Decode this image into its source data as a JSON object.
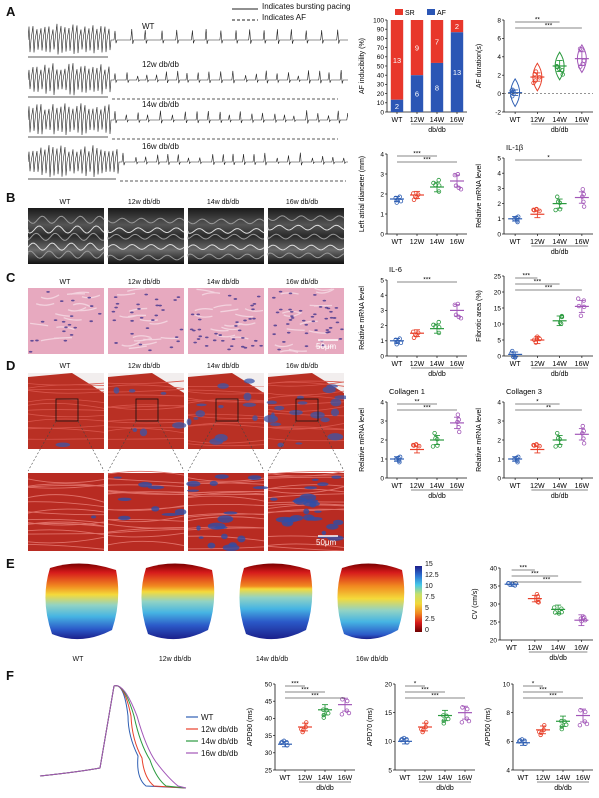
{
  "panels": {
    "a": "A",
    "b": "B",
    "c": "C",
    "d": "D",
    "e": "E",
    "f": "F"
  },
  "panel_a": {
    "legend_solid": "Indicates bursting pacing",
    "legend_dashed": "Indicates AF",
    "ecg_labels": [
      "WT",
      "12w db/db",
      "14w db/db",
      "16w db/db"
    ]
  },
  "groups_long": [
    "WT",
    "12w db/db",
    "14w db/db",
    "16w db/db"
  ],
  "scale_bar": "50μm",
  "colormap": {
    "ticks": [
      "15",
      "12.5",
      "10",
      "7.5",
      "5",
      "2.5",
      "0"
    ]
  },
  "apd_legend": [
    "WT",
    "12w db/db",
    "14w db/db",
    "16w db/db"
  ],
  "series_colors": {
    "WT": "#2f5fb3",
    "12W": "#e8402a",
    "14W": "#2a9a3e",
    "16W": "#a257b8"
  },
  "chart_data": [
    {
      "id": "af_inducibility",
      "type": "bar",
      "ylabel": "AF inducibility (%)",
      "ylim": [
        0,
        100
      ],
      "yticks": [
        0,
        10,
        20,
        30,
        40,
        50,
        60,
        70,
        80,
        90,
        100
      ],
      "categories": [
        "WT",
        "12W",
        "14W",
        "16W"
      ],
      "group_label": "db/db",
      "series": [
        {
          "name": "SR",
          "values": [
            13,
            9,
            7,
            2
          ]
        },
        {
          "name": "AF",
          "values": [
            2,
            6,
            8,
            13
          ]
        }
      ],
      "legend": [
        "SR",
        "AF"
      ],
      "colors": {
        "SR": "#e8372b",
        "AF": "#2b56b5"
      }
    },
    {
      "id": "af_duration",
      "type": "violin",
      "ylabel": "AF duration(s)",
      "ylim": [
        -2,
        8
      ],
      "yticks": [
        -2,
        0,
        2,
        4,
        6,
        8
      ],
      "categories": [
        "WT",
        "12W",
        "14W",
        "16W"
      ],
      "group_label": "db/db",
      "means": [
        0.1,
        1.8,
        3.0,
        3.8
      ],
      "sig": [
        {
          "from": 0,
          "to": 2,
          "text": "**"
        },
        {
          "from": 0,
          "to": 3,
          "text": "***"
        }
      ]
    },
    {
      "id": "lad",
      "type": "scatter",
      "ylabel": "Left atrial diameter (mm)",
      "ylim": [
        0,
        4
      ],
      "yticks": [
        0,
        1,
        2,
        3,
        4
      ],
      "categories": [
        "WT",
        "12W",
        "14W",
        "16W"
      ],
      "means": [
        1.75,
        1.95,
        2.35,
        2.65
      ],
      "sig": [
        {
          "from": 0,
          "to": 2,
          "text": "***"
        },
        {
          "from": 0,
          "to": 3,
          "text": "***"
        }
      ]
    },
    {
      "id": "il1b",
      "type": "scatter",
      "title": "IL-1β",
      "ylabel": "Relative mRNA level",
      "ylim": [
        0,
        5
      ],
      "yticks": [
        0,
        1,
        2,
        3,
        4,
        5
      ],
      "categories": [
        "WT",
        "12W",
        "14W",
        "16W"
      ],
      "group_label": "db/db",
      "means": [
        1.0,
        1.3,
        2.0,
        2.4
      ],
      "sig": [
        {
          "from": 0,
          "to": 3,
          "text": "*"
        }
      ]
    },
    {
      "id": "il6",
      "type": "scatter",
      "title": "IL-6",
      "ylabel": "Relative mRNA level",
      "ylim": [
        0,
        5
      ],
      "yticks": [
        0,
        1,
        2,
        3,
        4,
        5
      ],
      "categories": [
        "WT",
        "12W",
        "14W",
        "16W"
      ],
      "group_label": "db/db",
      "means": [
        1.0,
        1.5,
        1.8,
        3.0
      ],
      "sig": [
        {
          "from": 0,
          "to": 3,
          "text": "***"
        }
      ]
    },
    {
      "id": "fibrotic",
      "type": "scatter",
      "ylabel": "Fibrotic area (%)",
      "ylim": [
        0,
        25
      ],
      "yticks": [
        0,
        5,
        10,
        15,
        20,
        25
      ],
      "categories": [
        "WT",
        "12W",
        "14W",
        "16W"
      ],
      "group_label": "db/db",
      "means": [
        0.5,
        5.0,
        11.0,
        15.5
      ],
      "sig": [
        {
          "from": 0,
          "to": 1,
          "text": "***"
        },
        {
          "from": 0,
          "to": 2,
          "text": "***"
        },
        {
          "from": 0,
          "to": 3,
          "text": "***"
        }
      ]
    },
    {
      "id": "col1",
      "type": "scatter",
      "title": "Collagen 1",
      "ylabel": "Relative mRNA level",
      "ylim": [
        0,
        4
      ],
      "yticks": [
        0,
        1,
        2,
        3,
        4
      ],
      "categories": [
        "WT",
        "12W",
        "14W",
        "16W"
      ],
      "group_label": "db/db",
      "means": [
        1.0,
        1.5,
        2.0,
        2.9
      ],
      "sig": [
        {
          "from": 0,
          "to": 2,
          "text": "**"
        },
        {
          "from": 0,
          "to": 3,
          "text": "***"
        }
      ]
    },
    {
      "id": "col3",
      "type": "scatter",
      "title": "Collagen 3",
      "ylabel": "Relative mRNA level",
      "ylim": [
        0,
        4
      ],
      "yticks": [
        0,
        1,
        2,
        3,
        4
      ],
      "categories": [
        "WT",
        "12W",
        "14W",
        "16W"
      ],
      "group_label": "db/db",
      "means": [
        1.0,
        1.5,
        2.0,
        2.3
      ],
      "sig": [
        {
          "from": 0,
          "to": 2,
          "text": "*"
        },
        {
          "from": 0,
          "to": 3,
          "text": "**"
        }
      ]
    },
    {
      "id": "cv",
      "type": "scatter",
      "ylabel": "CV (cm/s)",
      "ylim": [
        20,
        40
      ],
      "yticks": [
        20,
        25,
        30,
        35,
        40
      ],
      "categories": [
        "WT",
        "12W",
        "14W",
        "16W"
      ],
      "group_label": "db/db",
      "means": [
        35.5,
        31.5,
        28.5,
        25.5
      ],
      "sig": [
        {
          "from": 0,
          "to": 1,
          "text": "***"
        },
        {
          "from": 0,
          "to": 2,
          "text": "***"
        },
        {
          "from": 0,
          "to": 3,
          "text": "***"
        }
      ]
    },
    {
      "id": "apd90",
      "type": "scatter",
      "ylabel": "APD90 (ms)",
      "ylim": [
        25,
        50
      ],
      "yticks": [
        25,
        30,
        35,
        40,
        45,
        50
      ],
      "categories": [
        "WT",
        "12W",
        "14W",
        "16W"
      ],
      "group_label": "db/db",
      "means": [
        32.5,
        37.5,
        42.5,
        44.0
      ],
      "sig": [
        {
          "from": 0,
          "to": 1,
          "text": "***"
        },
        {
          "from": 0,
          "to": 2,
          "text": "***"
        },
        {
          "from": 0,
          "to": 3,
          "text": "***"
        }
      ]
    },
    {
      "id": "apd70",
      "type": "scatter",
      "ylabel": "APD70 (ms)",
      "ylim": [
        5,
        20
      ],
      "yticks": [
        5,
        10,
        15,
        20
      ],
      "categories": [
        "WT",
        "12W",
        "14W",
        "16W"
      ],
      "group_label": "db/db",
      "means": [
        10.0,
        12.5,
        14.5,
        15.0
      ],
      "sig": [
        {
          "from": 0,
          "to": 1,
          "text": "*"
        },
        {
          "from": 0,
          "to": 2,
          "text": "***"
        },
        {
          "from": 0,
          "to": 3,
          "text": "***"
        }
      ]
    },
    {
      "id": "apd50",
      "type": "scatter",
      "ylabel": "APD50 (ms)",
      "ylim": [
        4,
        10
      ],
      "yticks": [
        4,
        6,
        8,
        10
      ],
      "categories": [
        "WT",
        "12W",
        "14W",
        "16W"
      ],
      "group_label": "db/db",
      "means": [
        5.9,
        6.8,
        7.4,
        7.8
      ],
      "sig": [
        {
          "from": 0,
          "to": 1,
          "text": "*"
        },
        {
          "from": 0,
          "to": 2,
          "text": "***"
        },
        {
          "from": 0,
          "to": 3,
          "text": "***"
        }
      ]
    }
  ]
}
